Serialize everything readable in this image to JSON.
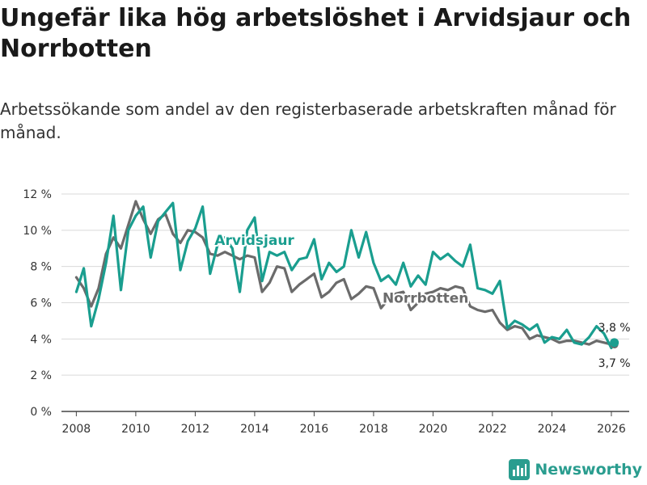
{
  "chart_data": {
    "type": "line",
    "title": "Ungefär lika hög arbetslöshet i Arvidsjaur och Norrbotten",
    "subtitle": "Arbetssökande som andel av den registerbaserade arbetskraften månad för månad.",
    "xlabel": "",
    "ylabel": "",
    "xlim": [
      2007.5,
      2026.6
    ],
    "ylim": [
      0,
      12
    ],
    "y_ticks": [
      0,
      2,
      4,
      6,
      8,
      10,
      12
    ],
    "y_tick_labels": [
      "0 %",
      "2 %",
      "4 %",
      "6 %",
      "8 %",
      "10 %",
      "12 %"
    ],
    "x_ticks": [
      2008,
      2010,
      2012,
      2014,
      2016,
      2018,
      2020,
      2022,
      2024,
      2026
    ],
    "x_tick_labels": [
      "2008",
      "2010",
      "2012",
      "2014",
      "2016",
      "2018",
      "2020",
      "2022",
      "2024",
      "2026"
    ],
    "gridlines": "horizontal",
    "series": [
      {
        "name": "Norrbotten",
        "color": "#6b6b6b",
        "x": [
          2008.0,
          2008.25,
          2008.5,
          2008.75,
          2009.0,
          2009.25,
          2009.5,
          2009.75,
          2010.0,
          2010.25,
          2010.5,
          2010.75,
          2011.0,
          2011.25,
          2011.5,
          2011.75,
          2012.0,
          2012.25,
          2012.5,
          2012.75,
          2013.0,
          2013.25,
          2013.5,
          2013.75,
          2014.0,
          2014.25,
          2014.5,
          2014.75,
          2015.0,
          2015.25,
          2015.5,
          2015.75,
          2016.0,
          2016.25,
          2016.5,
          2016.75,
          2017.0,
          2017.25,
          2017.5,
          2017.75,
          2018.0,
          2018.25,
          2018.5,
          2018.75,
          2019.0,
          2019.25,
          2019.5,
          2019.75,
          2020.0,
          2020.25,
          2020.5,
          2020.75,
          2021.0,
          2021.25,
          2021.5,
          2021.75,
          2022.0,
          2022.25,
          2022.5,
          2022.75,
          2023.0,
          2023.25,
          2023.5,
          2023.75,
          2024.0,
          2024.25,
          2024.5,
          2024.75,
          2025.0,
          2025.25,
          2025.5,
          2025.75,
          2026.0,
          2026.1
        ],
        "values": [
          7.4,
          6.8,
          5.8,
          6.8,
          8.7,
          9.6,
          9.0,
          10.3,
          11.6,
          10.6,
          9.8,
          10.6,
          10.9,
          9.8,
          9.3,
          10.0,
          9.9,
          9.6,
          8.7,
          8.6,
          8.8,
          8.6,
          8.4,
          8.6,
          8.5,
          6.6,
          7.1,
          8.0,
          7.9,
          6.6,
          7.0,
          7.3,
          7.6,
          6.3,
          6.6,
          7.1,
          7.3,
          6.2,
          6.5,
          6.9,
          6.8,
          5.7,
          6.2,
          6.5,
          6.6,
          5.6,
          6.0,
          6.5,
          6.6,
          6.8,
          6.7,
          6.9,
          6.8,
          5.8,
          5.6,
          5.5,
          5.6,
          4.9,
          4.5,
          4.7,
          4.6,
          4.0,
          4.2,
          4.1,
          4.0,
          3.8,
          3.9,
          3.9,
          3.8,
          3.7,
          3.9,
          3.8,
          3.7,
          3.7
        ],
        "end_label": "3,7 %"
      },
      {
        "name": "Arvidsjaur",
        "color": "#1a9e8f",
        "x": [
          2008.0,
          2008.25,
          2008.5,
          2008.75,
          2009.0,
          2009.25,
          2009.5,
          2009.75,
          2010.0,
          2010.25,
          2010.5,
          2010.75,
          2011.0,
          2011.25,
          2011.5,
          2011.75,
          2012.0,
          2012.25,
          2012.5,
          2012.75,
          2013.0,
          2013.25,
          2013.5,
          2013.75,
          2014.0,
          2014.25,
          2014.5,
          2014.75,
          2015.0,
          2015.25,
          2015.5,
          2015.75,
          2016.0,
          2016.25,
          2016.5,
          2016.75,
          2017.0,
          2017.25,
          2017.5,
          2017.75,
          2018.0,
          2018.25,
          2018.5,
          2018.75,
          2019.0,
          2019.25,
          2019.5,
          2019.75,
          2020.0,
          2020.25,
          2020.5,
          2020.75,
          2021.0,
          2021.25,
          2021.5,
          2021.75,
          2022.0,
          2022.25,
          2022.5,
          2022.75,
          2023.0,
          2023.25,
          2023.5,
          2023.75,
          2024.0,
          2024.25,
          2024.5,
          2024.75,
          2025.0,
          2025.25,
          2025.5,
          2025.75,
          2026.0,
          2026.1
        ],
        "values": [
          6.6,
          7.9,
          4.7,
          6.2,
          8.2,
          10.8,
          6.7,
          10.0,
          10.8,
          11.3,
          8.5,
          10.5,
          11.0,
          11.5,
          7.8,
          9.4,
          10.1,
          11.3,
          7.6,
          9.2,
          9.6,
          9.0,
          6.6,
          10.0,
          10.7,
          7.2,
          8.8,
          8.6,
          8.8,
          7.8,
          8.4,
          8.5,
          9.5,
          7.3,
          8.2,
          7.7,
          8.0,
          10.0,
          8.5,
          9.9,
          8.2,
          7.2,
          7.5,
          7.0,
          8.2,
          6.9,
          7.5,
          7.0,
          8.8,
          8.4,
          8.7,
          8.3,
          8.0,
          9.2,
          6.8,
          6.7,
          6.5,
          7.2,
          4.6,
          5.0,
          4.8,
          4.5,
          4.8,
          3.8,
          4.1,
          4.0,
          4.5,
          3.8,
          3.7,
          4.1,
          4.7,
          4.3,
          3.5,
          3.8
        ],
        "end_label": "3,8 %"
      }
    ]
  },
  "branding": {
    "logo_text": "Newsworthy",
    "logo_icon": "bar-chart-icon",
    "accent_color": "#2a9d8f"
  }
}
